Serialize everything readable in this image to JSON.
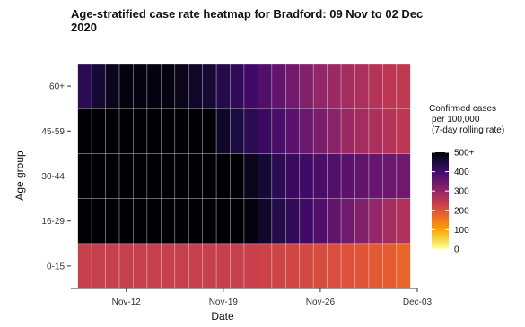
{
  "chart_data": {
    "type": "heatmap",
    "title_lines": [
      "Age-stratified case rate heatmap for Bradford: 09 Nov to 02 Dec",
      "2020"
    ],
    "xlabel": "Date",
    "ylabel": "Age group",
    "x": [
      "2020-11-09",
      "2020-11-10",
      "2020-11-11",
      "2020-11-12",
      "2020-11-13",
      "2020-11-14",
      "2020-11-15",
      "2020-11-16",
      "2020-11-17",
      "2020-11-18",
      "2020-11-19",
      "2020-11-20",
      "2020-11-21",
      "2020-11-22",
      "2020-11-23",
      "2020-11-24",
      "2020-11-25",
      "2020-11-26",
      "2020-11-27",
      "2020-11-28",
      "2020-11-29",
      "2020-11-30",
      "2020-12-01",
      "2020-12-02"
    ],
    "x_ticks": [
      {
        "date": "2020-11-12",
        "label": "Nov-12"
      },
      {
        "date": "2020-11-19",
        "label": "Nov-19"
      },
      {
        "date": "2020-11-26",
        "label": "Nov-26"
      },
      {
        "date": "2020-12-03",
        "label": "Dec-03"
      }
    ],
    "x_range": [
      "2020-11-08",
      "2020-12-03"
    ],
    "y_categories": [
      "0-15",
      "16-29",
      "30-44",
      "45-59",
      "60+"
    ],
    "values": {
      "60+": [
        430,
        460,
        480,
        490,
        490,
        490,
        490,
        480,
        470,
        460,
        440,
        420,
        400,
        380,
        360,
        340,
        320,
        300,
        290,
        280,
        270,
        260,
        250,
        245
      ],
      "45-59": [
        500,
        500,
        500,
        500,
        500,
        500,
        500,
        500,
        500,
        500,
        470,
        450,
        430,
        410,
        390,
        370,
        350,
        330,
        310,
        290,
        280,
        270,
        260,
        250
      ],
      "30-44": [
        500,
        500,
        500,
        500,
        500,
        500,
        500,
        500,
        500,
        500,
        500,
        500,
        480,
        460,
        430,
        410,
        400,
        390,
        380,
        370,
        360,
        355,
        350,
        345
      ],
      "16-29": [
        500,
        500,
        500,
        500,
        500,
        500,
        500,
        500,
        500,
        500,
        500,
        500,
        490,
        470,
        440,
        420,
        400,
        380,
        360,
        340,
        320,
        300,
        280,
        265
      ],
      "0-15": [
        235,
        235,
        235,
        235,
        235,
        235,
        235,
        235,
        235,
        235,
        235,
        235,
        232,
        228,
        224,
        220,
        215,
        210,
        205,
        200,
        195,
        190,
        185,
        175
      ]
    },
    "color_scale": {
      "name": "inferno",
      "domain": [
        0,
        500
      ],
      "stops": [
        "#fcffa4",
        "#f6d746",
        "#fca50a",
        "#f37819",
        "#dd513a",
        "#bc3754",
        "#932667",
        "#6a176e",
        "#420a68",
        "#1b0c41",
        "#000004"
      ]
    },
    "legend": {
      "title_lines": [
        "Confirmed cases",
        "per 100,000",
        "(7-day rolling rate)"
      ],
      "ticks": [
        {
          "value": 500,
          "label": "500+"
        },
        {
          "value": 400,
          "label": "400"
        },
        {
          "value": 300,
          "label": "300"
        },
        {
          "value": 200,
          "label": "200"
        },
        {
          "value": 100,
          "label": "100"
        },
        {
          "value": 0,
          "label": "0"
        }
      ],
      "placement": "right"
    }
  }
}
